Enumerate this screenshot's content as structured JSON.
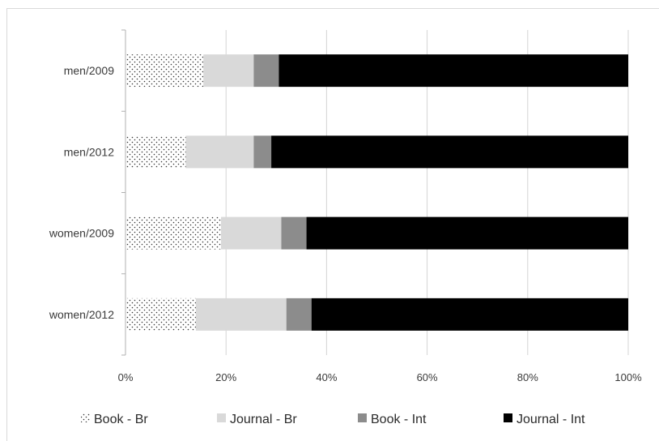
{
  "chart_data": {
    "type": "bar",
    "orientation": "horizontal",
    "stacked": "percent",
    "categories": [
      "men/2009",
      "men/2012",
      "women/2009",
      "women/2012"
    ],
    "series": [
      {
        "name": "Book - Br",
        "values": [
          15.5,
          12,
          19,
          14
        ],
        "color": "#ffffff",
        "pattern": "dots"
      },
      {
        "name": "Journal - Br",
        "values": [
          10,
          13.5,
          12,
          18
        ],
        "color": "#d9d9d9"
      },
      {
        "name": "Book - Int",
        "values": [
          5,
          3.5,
          5,
          5
        ],
        "color": "#8c8c8c"
      },
      {
        "name": "Journal - Int",
        "values": [
          69.5,
          71,
          64,
          63
        ],
        "color": "#000000"
      }
    ],
    "xlim": [
      0,
      100
    ],
    "xticks": [
      "0%",
      "20%",
      "40%",
      "60%",
      "80%",
      "100%"
    ],
    "grid": "vertical",
    "legend": "bottom",
    "title": "",
    "xlabel": "",
    "ylabel": ""
  }
}
